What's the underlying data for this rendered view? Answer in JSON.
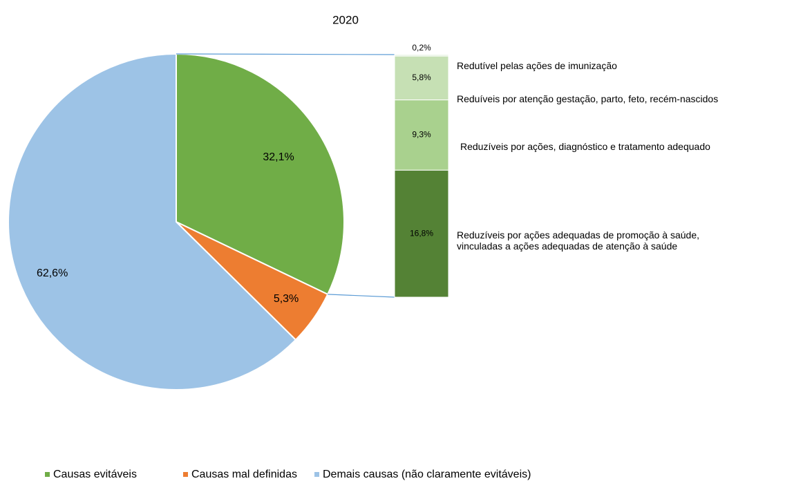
{
  "chart_data": {
    "type": "pie-of-bar",
    "title": "2020",
    "categories": [
      "Causas evitáveis",
      "Causas mal definidas",
      "Demais causas (não claramente evitáveis)"
    ],
    "values": [
      32.1,
      5.3,
      62.6
    ],
    "value_labels": [
      "32,1%",
      "5,3%",
      "62,6%"
    ],
    "colors": [
      "#70ad47",
      "#ed7d31",
      "#9dc3e6"
    ],
    "bar": {
      "categories": [
        "Redutível pelas ações de imunização",
        "Reduíveis por atenção gestação, parto, feto, recém-nascidos",
        "Reduzíveis por ações, diagnóstico e tratamento adequado",
        "Reduzíveis por ações adequadas de promoção à saúde,\nvinculadas a ações adequadas de atenção à saúde"
      ],
      "values": [
        0.2,
        5.8,
        9.3,
        16.8
      ],
      "value_labels": [
        "0,2%",
        "5,8%",
        "9,3%",
        "16,8%"
      ],
      "colors": [
        "#e2efda",
        "#c6e0b4",
        "#a9d18e",
        "#548235"
      ]
    },
    "legend": "bottom"
  }
}
